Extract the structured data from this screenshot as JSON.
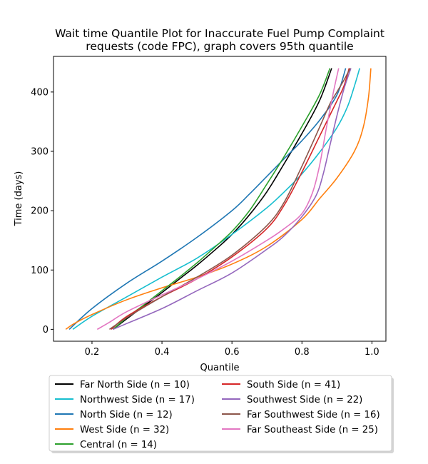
{
  "chart_data": {
    "type": "line",
    "title_lines": [
      "Wait time Quantile Plot for Inaccurate Fuel Pump Complaint",
      "requests (code FPC), graph covers 95th quantile"
    ],
    "xlabel": "Quantile",
    "ylabel": "Time (days)",
    "xlim": [
      0.09,
      1.04
    ],
    "ylim": [
      -20,
      460
    ],
    "xticks": [
      0.2,
      0.4,
      0.6,
      0.8,
      1.0
    ],
    "xtick_labels": [
      "0.2",
      "0.4",
      "0.6",
      "0.8",
      "1.0"
    ],
    "yticks": [
      0,
      100,
      200,
      300,
      400
    ],
    "ytick_labels": [
      "0",
      "100",
      "200",
      "300",
      "400"
    ],
    "grid": false,
    "legend_position": "below plot, two columns",
    "series": [
      {
        "name": "Far North Side (n = 10)",
        "color": "#000000",
        "x": [
          0.26,
          0.3,
          0.35,
          0.4,
          0.45,
          0.5,
          0.55,
          0.6,
          0.65,
          0.7,
          0.75,
          0.8,
          0.85,
          0.885
        ],
        "y": [
          0,
          18,
          40,
          62,
          85,
          108,
          133,
          160,
          193,
          232,
          280,
          330,
          385,
          440
        ]
      },
      {
        "name": "Northwest Side (n = 17)",
        "color": "#17becf",
        "x": [
          0.145,
          0.2,
          0.3,
          0.4,
          0.5,
          0.6,
          0.7,
          0.75,
          0.8,
          0.85,
          0.9,
          0.93,
          0.95,
          0.965
        ],
        "y": [
          0,
          22,
          55,
          88,
          120,
          160,
          205,
          232,
          262,
          298,
          340,
          375,
          410,
          440
        ]
      },
      {
        "name": "North Side (n = 12)",
        "color": "#1f77b4",
        "x": [
          0.135,
          0.2,
          0.3,
          0.4,
          0.5,
          0.6,
          0.65,
          0.7,
          0.75,
          0.8,
          0.85,
          0.9,
          0.925
        ],
        "y": [
          0,
          35,
          78,
          115,
          155,
          200,
          228,
          258,
          288,
          318,
          352,
          395,
          440
        ]
      },
      {
        "name": "West Side (n = 32)",
        "color": "#ff7f0e",
        "x": [
          0.125,
          0.15,
          0.2,
          0.3,
          0.4,
          0.5,
          0.6,
          0.7,
          0.8,
          0.85,
          0.9,
          0.95,
          0.975,
          0.99,
          0.997
        ],
        "y": [
          0,
          10,
          25,
          50,
          70,
          88,
          110,
          140,
          185,
          220,
          255,
          300,
          340,
          390,
          440
        ]
      },
      {
        "name": "Central (n = 14)",
        "color": "#2ca02c",
        "x": [
          0.26,
          0.3,
          0.35,
          0.4,
          0.45,
          0.5,
          0.55,
          0.6,
          0.65,
          0.7,
          0.75,
          0.8,
          0.85,
          0.88
        ],
        "y": [
          0,
          20,
          42,
          65,
          88,
          112,
          138,
          165,
          200,
          245,
          292,
          342,
          395,
          440
        ]
      },
      {
        "name": "South Side (n = 41)",
        "color": "#d62728",
        "x": [
          0.255,
          0.3,
          0.4,
          0.5,
          0.6,
          0.7,
          0.75,
          0.8,
          0.85,
          0.9,
          0.92,
          0.935
        ],
        "y": [
          0,
          22,
          55,
          85,
          122,
          170,
          210,
          265,
          325,
          385,
          410,
          440
        ]
      },
      {
        "name": "Southwest Side (n = 22)",
        "color": "#9467bd",
        "x": [
          0.26,
          0.3,
          0.4,
          0.5,
          0.6,
          0.7,
          0.75,
          0.8,
          0.84,
          0.86,
          0.88,
          0.9,
          0.92,
          0.94
        ],
        "y": [
          0,
          10,
          35,
          65,
          95,
          135,
          158,
          190,
          225,
          260,
          310,
          360,
          405,
          440
        ]
      },
      {
        "name": "Far Southwest Side (n = 16)",
        "color": "#8c564b",
        "x": [
          0.25,
          0.3,
          0.4,
          0.5,
          0.6,
          0.7,
          0.75,
          0.8,
          0.85,
          0.88,
          0.9,
          0.92,
          0.938
        ],
        "y": [
          0,
          20,
          55,
          88,
          125,
          175,
          215,
          275,
          340,
          380,
          400,
          420,
          440
        ]
      },
      {
        "name": "Far Southeast Side (n = 25)",
        "color": "#e377c2",
        "x": [
          0.215,
          0.25,
          0.3,
          0.4,
          0.5,
          0.6,
          0.7,
          0.75,
          0.8,
          0.83,
          0.85,
          0.87,
          0.89,
          0.905
        ],
        "y": [
          0,
          12,
          30,
          58,
          85,
          115,
          150,
          170,
          195,
          230,
          275,
          340,
          400,
          440
        ]
      }
    ]
  }
}
